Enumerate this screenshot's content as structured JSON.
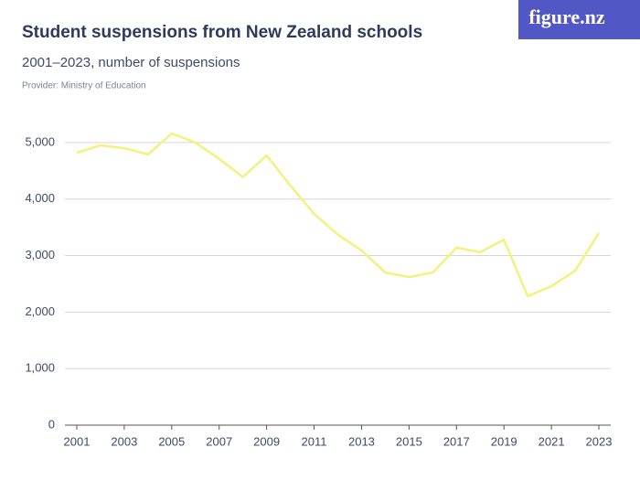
{
  "logo": "figure.nz",
  "chart_data": {
    "type": "line",
    "title": "Student suspensions from New Zealand schools",
    "subtitle": "2001–2023, number of suspensions",
    "source": "Provider: Ministry of Education",
    "x": [
      2001,
      2002,
      2003,
      2004,
      2005,
      2006,
      2007,
      2008,
      2009,
      2010,
      2011,
      2012,
      2013,
      2014,
      2015,
      2016,
      2017,
      2018,
      2019,
      2020,
      2021,
      2022,
      2023
    ],
    "values": [
      4820,
      4950,
      4900,
      4790,
      5160,
      5000,
      4710,
      4390,
      4770,
      4240,
      3740,
      3370,
      3090,
      2700,
      2620,
      2700,
      3140,
      3060,
      3280,
      2280,
      2460,
      2730,
      3400
    ],
    "color": "#f6f07c",
    "xlim": [
      2000.5,
      2023.5
    ],
    "xticks": [
      2001,
      2003,
      2005,
      2007,
      2009,
      2011,
      2013,
      2015,
      2017,
      2019,
      2021,
      2023
    ],
    "ylim": [
      0,
      5500
    ],
    "yticks": [
      0,
      {
        "value": 1000,
        "label": "1,000"
      },
      {
        "value": 2000,
        "label": "2,000"
      },
      {
        "value": 3000,
        "label": "3,000"
      },
      {
        "value": 4000,
        "label": "4,000"
      },
      {
        "value": 5000,
        "label": "5,000"
      }
    ],
    "grid": true
  }
}
